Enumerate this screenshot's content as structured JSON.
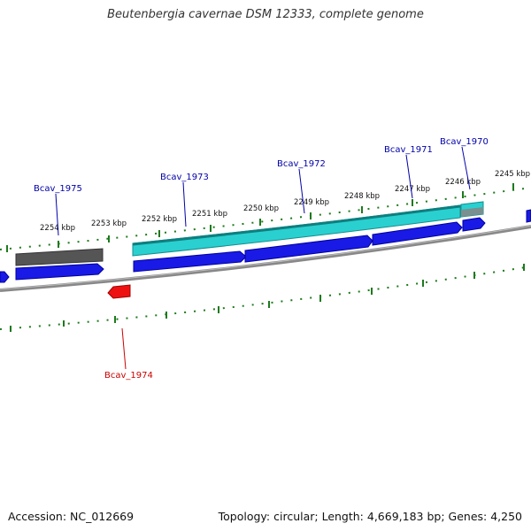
{
  "title": "Beutenbergia cavernae DSM 12333, complete genome",
  "footer": {
    "accession": "Accession: NC_012669",
    "summary": "Topology: circular; Length: 4,669,183 bp; Genes: 4,250"
  },
  "colors": {
    "backbone": "#888888",
    "tick": "#1d7a1d",
    "forward_gene": "#1a1ae6",
    "forward_cds": "#2ad0d0",
    "pseudo_gene": "#555555",
    "reverse_gene": "#ee1111",
    "label_forward": "#0000aa",
    "label_reverse": "#cc0000"
  },
  "tick_labels": [
    "2254 kbp",
    "2253 kbp",
    "2252 kbp",
    "2251 kbp",
    "2250 kbp",
    "2249 kbp",
    "2248 kbp",
    "2247 kbp",
    "2246 kbp",
    "2245 kbp"
  ],
  "genes": [
    {
      "locus": "Bcav_1975",
      "strand": "forward"
    },
    {
      "locus": "Bcav_1974",
      "strand": "reverse"
    },
    {
      "locus": "Bcav_1973",
      "strand": "forward"
    },
    {
      "locus": "Bcav_1972",
      "strand": "forward"
    },
    {
      "locus": "Bcav_1971",
      "strand": "forward"
    },
    {
      "locus": "Bcav_1970",
      "strand": "forward"
    }
  ]
}
